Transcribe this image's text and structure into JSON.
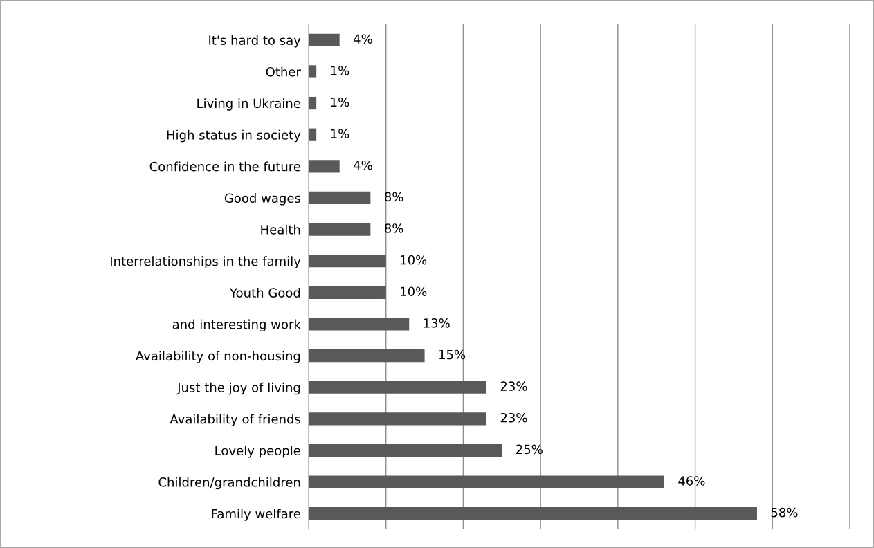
{
  "chart_data": {
    "type": "bar",
    "orientation": "horizontal",
    "categories": [
      "It's hard to say",
      "Other",
      "Living in Ukraine",
      "High status in society",
      "Confidence in the future",
      "Good wages",
      "Health",
      "Interrelationships in the family",
      "Youth Good",
      "and interesting work",
      "Availability of non-housing",
      "Just the joy of living",
      "Availability of friends",
      "Lovely people",
      "Children/grandchildren",
      "Family welfare"
    ],
    "values": [
      4,
      1,
      1,
      1,
      4,
      8,
      8,
      10,
      10,
      13,
      15,
      23,
      23,
      25,
      46,
      58
    ],
    "value_labels": [
      "4%",
      "1%",
      "1%",
      "1%",
      "4%",
      "8%",
      "8%",
      "10%",
      "10%",
      "13%",
      "15%",
      "23%",
      "23%",
      "25%",
      "46%",
      "58%"
    ],
    "color": "#595959",
    "xlim": [
      0,
      70
    ],
    "xticks": [
      {
        "value": 0,
        "label": null
      },
      {
        "value": 10,
        "label": null
      },
      {
        "value": 20,
        "label": null
      },
      {
        "value": 30,
        "label": null
      },
      {
        "value": 40,
        "label": null
      },
      {
        "value": 50,
        "label": null
      },
      {
        "value": 60,
        "label": null
      },
      {
        "value": 70,
        "label": null
      }
    ],
    "grid": "x",
    "tick_labels": "y"
  }
}
